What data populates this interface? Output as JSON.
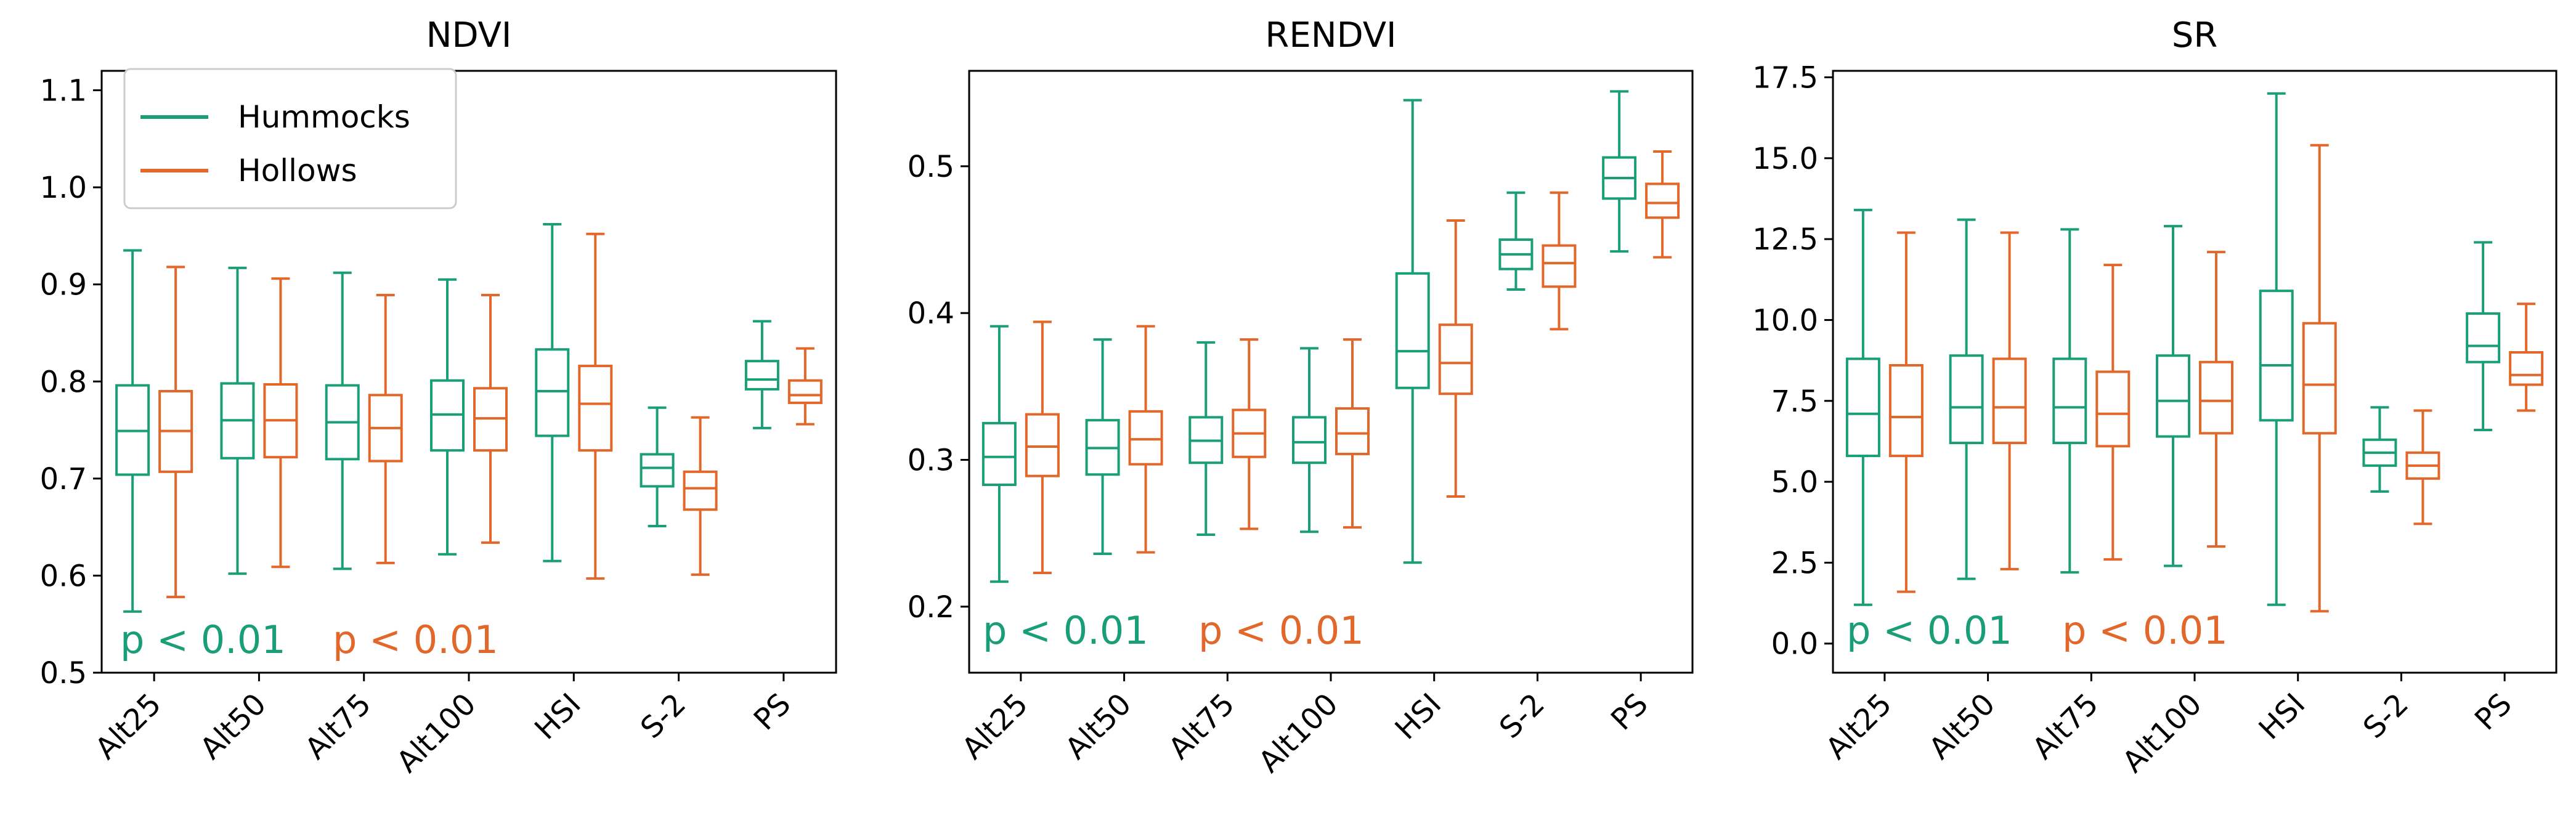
{
  "colors": {
    "hummocks": "#1a9e77",
    "hollows": "#e2672a"
  },
  "legend": {
    "items": [
      {
        "label": "Hummocks",
        "color": "#1a9e77"
      },
      {
        "label": "Hollows",
        "color": "#e2672a"
      }
    ]
  },
  "chart_data": [
    {
      "type": "box",
      "title": "NDVI",
      "categories": [
        "Alt25",
        "Alt50",
        "Alt75",
        "Alt100",
        "HSI",
        "S-2",
        "PS"
      ],
      "ylim": [
        0.5,
        1.12
      ],
      "yticks": [
        0.5,
        0.6,
        0.7,
        0.8,
        0.9,
        1.0,
        1.1
      ],
      "ytick_labels": [
        "0.5",
        "0.6",
        "0.7",
        "0.8",
        "0.9",
        "1.0",
        "1.1"
      ],
      "p_hummocks": "p < 0.01",
      "p_hollows": "p < 0.01",
      "series": [
        {
          "name": "Hummocks",
          "color": "#1a9e77",
          "boxes": [
            {
              "min": 0.563,
              "q1": 0.704,
              "median": 0.749,
              "q3": 0.796,
              "max": 0.935
            },
            {
              "min": 0.602,
              "q1": 0.721,
              "median": 0.76,
              "q3": 0.798,
              "max": 0.917
            },
            {
              "min": 0.607,
              "q1": 0.72,
              "median": 0.758,
              "q3": 0.796,
              "max": 0.912
            },
            {
              "min": 0.622,
              "q1": 0.729,
              "median": 0.766,
              "q3": 0.801,
              "max": 0.905
            },
            {
              "min": 0.615,
              "q1": 0.744,
              "median": 0.79,
              "q3": 0.833,
              "max": 0.962
            },
            {
              "min": 0.651,
              "q1": 0.692,
              "median": 0.711,
              "q3": 0.725,
              "max": 0.773
            },
            {
              "min": 0.752,
              "q1": 0.792,
              "median": 0.802,
              "q3": 0.821,
              "max": 0.862
            }
          ]
        },
        {
          "name": "Hollows",
          "color": "#e2672a",
          "boxes": [
            {
              "min": 0.578,
              "q1": 0.707,
              "median": 0.749,
              "q3": 0.79,
              "max": 0.918
            },
            {
              "min": 0.609,
              "q1": 0.722,
              "median": 0.76,
              "q3": 0.797,
              "max": 0.906
            },
            {
              "min": 0.613,
              "q1": 0.718,
              "median": 0.752,
              "q3": 0.786,
              "max": 0.889
            },
            {
              "min": 0.634,
              "q1": 0.729,
              "median": 0.762,
              "q3": 0.793,
              "max": 0.889
            },
            {
              "min": 0.597,
              "q1": 0.729,
              "median": 0.777,
              "q3": 0.816,
              "max": 0.952
            },
            {
              "min": 0.601,
              "q1": 0.668,
              "median": 0.69,
              "q3": 0.707,
              "max": 0.763
            },
            {
              "min": 0.756,
              "q1": 0.778,
              "median": 0.786,
              "q3": 0.801,
              "max": 0.834
            }
          ]
        }
      ]
    },
    {
      "type": "box",
      "title": "RENDVI",
      "categories": [
        "Alt25",
        "Alt50",
        "Alt75",
        "Alt100",
        "HSI",
        "S-2",
        "PS"
      ],
      "ylim": [
        0.155,
        0.565
      ],
      "yticks": [
        0.2,
        0.3,
        0.4,
        0.5
      ],
      "ytick_labels": [
        "0.2",
        "0.3",
        "0.4",
        "0.5"
      ],
      "p_hummocks": "p < 0.01",
      "p_hollows": "p < 0.01",
      "series": [
        {
          "name": "Hummocks",
          "color": "#1a9e77",
          "boxes": [
            {
              "min": 0.217,
              "q1": 0.283,
              "median": 0.302,
              "q3": 0.325,
              "max": 0.391
            },
            {
              "min": 0.236,
              "q1": 0.29,
              "median": 0.308,
              "q3": 0.327,
              "max": 0.382
            },
            {
              "min": 0.249,
              "q1": 0.298,
              "median": 0.313,
              "q3": 0.329,
              "max": 0.38
            },
            {
              "min": 0.251,
              "q1": 0.298,
              "median": 0.312,
              "q3": 0.329,
              "max": 0.376
            },
            {
              "min": 0.23,
              "q1": 0.349,
              "median": 0.374,
              "q3": 0.427,
              "max": 0.545
            },
            {
              "min": 0.416,
              "q1": 0.43,
              "median": 0.44,
              "q3": 0.45,
              "max": 0.482
            },
            {
              "min": 0.442,
              "q1": 0.478,
              "median": 0.492,
              "q3": 0.506,
              "max": 0.551
            }
          ]
        },
        {
          "name": "Hollows",
          "color": "#e2672a",
          "boxes": [
            {
              "min": 0.223,
              "q1": 0.289,
              "median": 0.309,
              "q3": 0.331,
              "max": 0.394
            },
            {
              "min": 0.237,
              "q1": 0.297,
              "median": 0.314,
              "q3": 0.333,
              "max": 0.391
            },
            {
              "min": 0.253,
              "q1": 0.302,
              "median": 0.318,
              "q3": 0.334,
              "max": 0.382
            },
            {
              "min": 0.254,
              "q1": 0.304,
              "median": 0.318,
              "q3": 0.335,
              "max": 0.382
            },
            {
              "min": 0.275,
              "q1": 0.345,
              "median": 0.366,
              "q3": 0.392,
              "max": 0.463
            },
            {
              "min": 0.389,
              "q1": 0.418,
              "median": 0.434,
              "q3": 0.446,
              "max": 0.482
            },
            {
              "min": 0.438,
              "q1": 0.465,
              "median": 0.475,
              "q3": 0.488,
              "max": 0.51
            }
          ]
        }
      ]
    },
    {
      "type": "box",
      "title": "SR",
      "categories": [
        "Alt25",
        "Alt50",
        "Alt75",
        "Alt100",
        "HSI",
        "S-2",
        "PS"
      ],
      "ylim": [
        -0.9,
        17.7
      ],
      "yticks": [
        0.0,
        2.5,
        5.0,
        7.5,
        10.0,
        12.5,
        15.0,
        17.5
      ],
      "ytick_labels": [
        "0.0",
        "2.5",
        "5.0",
        "7.5",
        "10.0",
        "12.5",
        "15.0",
        "17.5"
      ],
      "p_hummocks": "p < 0.01",
      "p_hollows": "p < 0.01",
      "series": [
        {
          "name": "Hummocks",
          "color": "#1a9e77",
          "boxes": [
            {
              "min": 1.2,
              "q1": 5.8,
              "median": 7.1,
              "q3": 8.8,
              "max": 13.4
            },
            {
              "min": 2.0,
              "q1": 6.2,
              "median": 7.3,
              "q3": 8.9,
              "max": 13.1
            },
            {
              "min": 2.2,
              "q1": 6.2,
              "median": 7.3,
              "q3": 8.8,
              "max": 12.8
            },
            {
              "min": 2.4,
              "q1": 6.4,
              "median": 7.5,
              "q3": 8.9,
              "max": 12.9
            },
            {
              "min": 1.2,
              "q1": 6.9,
              "median": 8.6,
              "q3": 10.9,
              "max": 17.0
            },
            {
              "min": 4.7,
              "q1": 5.5,
              "median": 5.9,
              "q3": 6.3,
              "max": 7.3
            },
            {
              "min": 6.6,
              "q1": 8.7,
              "median": 9.2,
              "q3": 10.2,
              "max": 12.4
            }
          ]
        },
        {
          "name": "Hollows",
          "color": "#e2672a",
          "boxes": [
            {
              "min": 1.6,
              "q1": 5.8,
              "median": 7.0,
              "q3": 8.6,
              "max": 12.7
            },
            {
              "min": 2.3,
              "q1": 6.2,
              "median": 7.3,
              "q3": 8.8,
              "max": 12.7
            },
            {
              "min": 2.6,
              "q1": 6.1,
              "median": 7.1,
              "q3": 8.4,
              "max": 11.7
            },
            {
              "min": 3.0,
              "q1": 6.5,
              "median": 7.5,
              "q3": 8.7,
              "max": 12.1
            },
            {
              "min": 1.0,
              "q1": 6.5,
              "median": 8.0,
              "q3": 9.9,
              "max": 15.4
            },
            {
              "min": 3.7,
              "q1": 5.1,
              "median": 5.5,
              "q3": 5.9,
              "max": 7.2
            },
            {
              "min": 7.2,
              "q1": 8.0,
              "median": 8.3,
              "q3": 9.0,
              "max": 10.5
            }
          ]
        }
      ]
    }
  ]
}
